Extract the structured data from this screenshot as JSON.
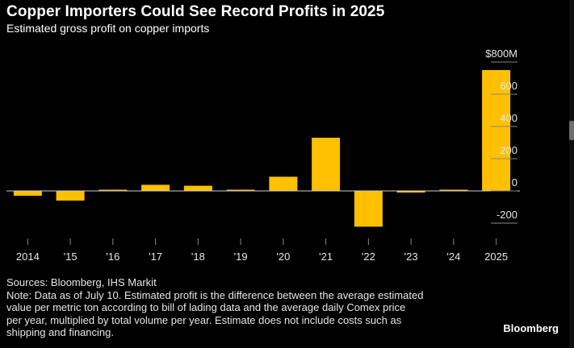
{
  "header": {
    "title": "Copper Importers Could See Record Profits in 2025",
    "subtitle": "Estimated gross profit on copper imports"
  },
  "footer": {
    "sources": "Sources: Bloomberg, IHS Markit",
    "note_lines": [
      "Note: Data as of July 10. Estimated profit is the difference between the average estimated",
      "value per metric ton according to bill of lading data and the average daily Comex price",
      "per year, multiplied by total volume per year. Estimate does not include costs such as",
      "shipping and financing."
    ],
    "brand": "Bloomberg"
  },
  "colors": {
    "background": "#000000",
    "bar": "#ffc000",
    "text": "#ffffff",
    "axis": "#888888"
  },
  "chart_data": {
    "type": "bar",
    "categories": [
      "2014",
      "'15",
      "'16",
      "'17",
      "'18",
      "'19",
      "'20",
      "'21",
      "'22",
      "'23",
      "'24",
      "2025"
    ],
    "values": [
      -30,
      -60,
      3,
      38,
      32,
      2,
      88,
      330,
      -222,
      -10,
      7,
      750
    ],
    "y_ticks": [
      800,
      600,
      400,
      200,
      0,
      -200
    ],
    "y_tick_labels": [
      "$800M",
      "600",
      "400",
      "200",
      "0",
      "-200"
    ],
    "ylim": [
      -240,
      800
    ],
    "grid": false,
    "axis_side": "right"
  }
}
